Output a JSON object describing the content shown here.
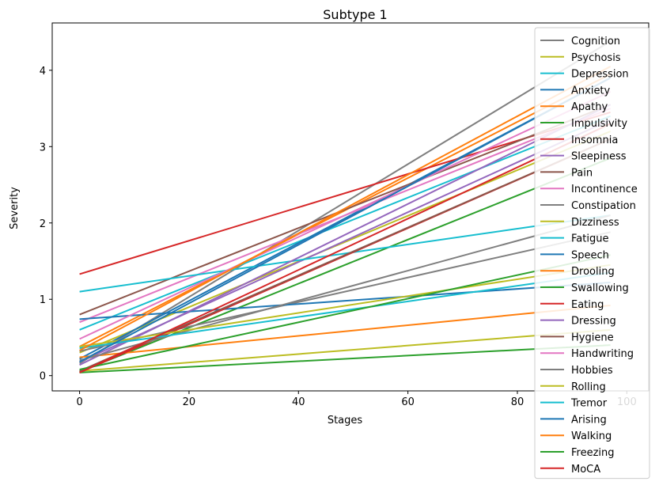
{
  "chart_data": {
    "type": "line",
    "title": "Subtype 1",
    "xlabel": "Stages",
    "ylabel": "Severity",
    "xlim": [
      -5,
      104
    ],
    "ylim": [
      -0.2,
      4.62
    ],
    "xticks": [
      0,
      20,
      40,
      60,
      80,
      100
    ],
    "yticks": [
      0,
      1,
      2,
      3,
      4
    ],
    "grid": false,
    "legend_position": "upper right",
    "series": [
      {
        "name": "Cognition",
        "color": "#7f7f7f",
        "x": [
          0,
          97
        ],
        "y": [
          0.16,
          4.38
        ]
      },
      {
        "name": "Psychosis",
        "color": "#bcbd22",
        "x": [
          0,
          97
        ],
        "y": [
          0.3,
          3.2
        ]
      },
      {
        "name": "Depression",
        "color": "#17becf",
        "x": [
          0,
          97
        ],
        "y": [
          0.6,
          3.4
        ]
      },
      {
        "name": "Anxiety",
        "color": "#1f77b4",
        "x": [
          0,
          97
        ],
        "y": [
          0.22,
          3.9
        ]
      },
      {
        "name": "Apathy",
        "color": "#ff7f0e",
        "x": [
          0,
          97
        ],
        "y": [
          0.38,
          3.95
        ]
      },
      {
        "name": "Impulsivity",
        "color": "#2ca02c",
        "x": [
          0,
          97
        ],
        "y": [
          0.05,
          2.85
        ]
      },
      {
        "name": "Insomnia",
        "color": "#d62728",
        "x": [
          0,
          97
        ],
        "y": [
          1.33,
          3.45
        ]
      },
      {
        "name": "Sleepiness",
        "color": "#9467bd",
        "x": [
          0,
          97
        ],
        "y": [
          0.18,
          3.35
        ]
      },
      {
        "name": "Pain",
        "color": "#8c564b",
        "x": [
          0,
          97
        ],
        "y": [
          0.8,
          3.55
        ]
      },
      {
        "name": "Incontinence",
        "color": "#e377c2",
        "x": [
          0,
          97
        ],
        "y": [
          0.7,
          3.5
        ]
      },
      {
        "name": "Constipation",
        "color": "#7f7f7f",
        "x": [
          0,
          97
        ],
        "y": [
          0.32,
          1.88
        ]
      },
      {
        "name": "Dizziness",
        "color": "#bcbd22",
        "x": [
          0,
          97
        ],
        "y": [
          0.06,
          0.6
        ]
      },
      {
        "name": "Fatigue",
        "color": "#17becf",
        "x": [
          0,
          97
        ],
        "y": [
          1.1,
          2.1
        ]
      },
      {
        "name": "Speech",
        "color": "#1f77b4",
        "x": [
          0,
          97
        ],
        "y": [
          0.74,
          1.22
        ]
      },
      {
        "name": "Drooling",
        "color": "#ff7f0e",
        "x": [
          0,
          97
        ],
        "y": [
          0.24,
          0.92
        ]
      },
      {
        "name": "Swallowing",
        "color": "#2ca02c",
        "x": [
          0,
          97
        ],
        "y": [
          0.04,
          0.4
        ]
      },
      {
        "name": "Eating",
        "color": "#d62728",
        "x": [
          0,
          97
        ],
        "y": [
          0.04,
          3.1
        ]
      },
      {
        "name": "Dressing",
        "color": "#9467bd",
        "x": [
          0,
          97
        ],
        "y": [
          0.14,
          3.55
        ]
      },
      {
        "name": "Hygiene",
        "color": "#8c564b",
        "x": [
          0,
          97
        ],
        "y": [
          0.06,
          3.1
        ]
      },
      {
        "name": "Handwriting",
        "color": "#e377c2",
        "x": [
          0,
          97
        ],
        "y": [
          0.48,
          3.72
        ]
      },
      {
        "name": "Hobbies",
        "color": "#7f7f7f",
        "x": [
          0,
          97
        ],
        "y": [
          0.2,
          2.1
        ]
      },
      {
        "name": "Rolling",
        "color": "#bcbd22",
        "x": [
          0,
          97
        ],
        "y": [
          0.38,
          1.45
        ]
      },
      {
        "name": "Tremor",
        "color": "#17becf",
        "x": [
          0,
          97
        ],
        "y": [
          0.36,
          1.35
        ]
      },
      {
        "name": "Arising",
        "color": "#1f77b4",
        "x": [
          0,
          97
        ],
        "y": [
          0.18,
          3.9
        ]
      },
      {
        "name": "Walking",
        "color": "#ff7f0e",
        "x": [
          0,
          97
        ],
        "y": [
          0.33,
          4.05
        ]
      },
      {
        "name": "Freezing",
        "color": "#2ca02c",
        "x": [
          0,
          97
        ],
        "y": [
          0.08,
          1.58
        ]
      },
      {
        "name": "MoCA",
        "color": "#d62728",
        "x": [
          0,
          97
        ],
        "y": [
          0.04,
          3.3
        ]
      }
    ]
  }
}
